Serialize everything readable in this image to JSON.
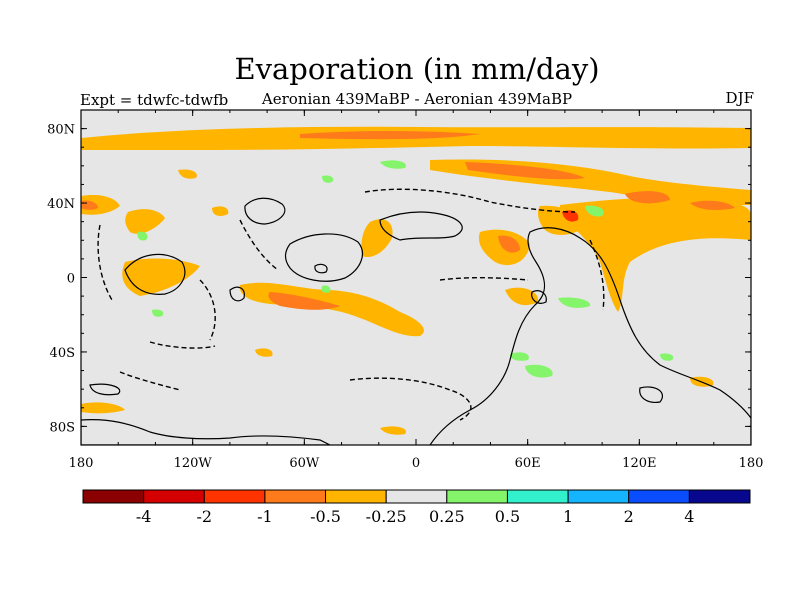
{
  "header": {
    "title": "Evaporation (in mm/day)",
    "subtitle": "Aeronian 439MaBP - Aeronian 439MaBP",
    "left_label": "Expt = tdwfc-tdwfb",
    "right_label": "DJF"
  },
  "axes": {
    "x_ticks": [
      {
        "value": -180,
        "label": "180"
      },
      {
        "value": -120,
        "label": "120W"
      },
      {
        "value": -60,
        "label": "60W"
      },
      {
        "value": 0,
        "label": "0"
      },
      {
        "value": 60,
        "label": "60E"
      },
      {
        "value": 120,
        "label": "120E"
      },
      {
        "value": 180,
        "label": "180"
      }
    ],
    "y_ticks": [
      {
        "value": 80,
        "label": "80N"
      },
      {
        "value": 40,
        "label": "40N"
      },
      {
        "value": 0,
        "label": "0"
      },
      {
        "value": -40,
        "label": "40S"
      },
      {
        "value": -80,
        "label": "80S"
      }
    ],
    "x_range": [
      -180,
      180
    ],
    "y_range": [
      -90,
      90
    ]
  },
  "colors": {
    "background_field": "#e6e6e6",
    "ocean_line": "#000000"
  },
  "colorbar": {
    "colors": [
      "#8b0000",
      "#d40000",
      "#ff3300",
      "#ff7a1a",
      "#ffb400",
      "#e6e6e6",
      "#84f46a",
      "#33f0cc",
      "#16b3ff",
      "#0a4dff",
      "#08088f"
    ],
    "labels": [
      "-4",
      "-2",
      "-1",
      "-0.5",
      "-0.25",
      "0.25",
      "0.5",
      "1",
      "2",
      "4"
    ]
  }
}
